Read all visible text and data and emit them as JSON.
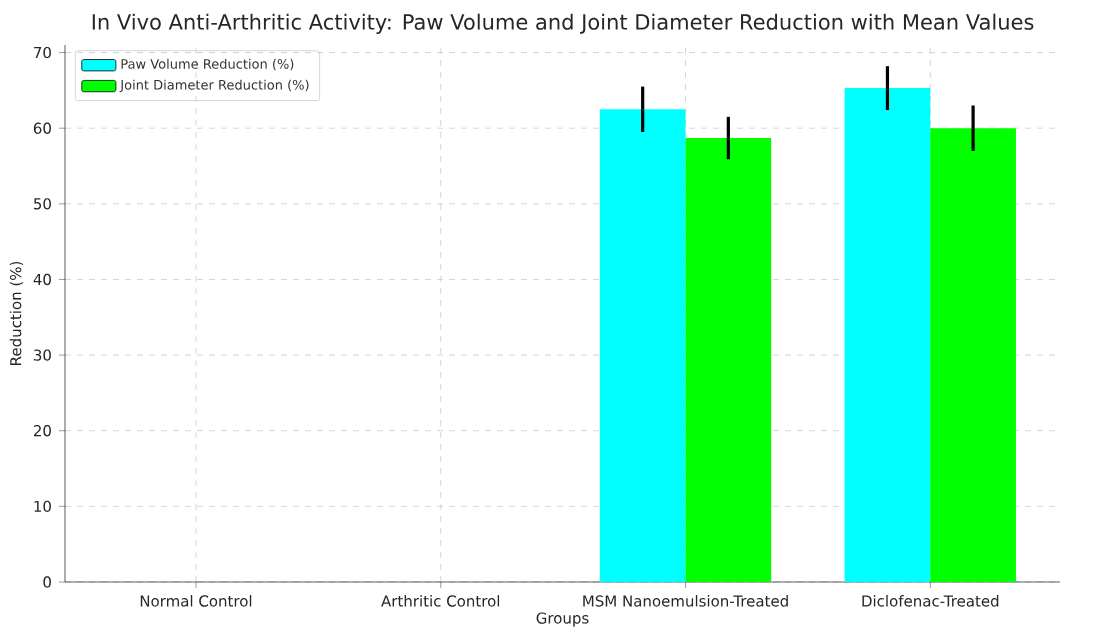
{
  "chart_data": {
    "type": "bar",
    "title": "In Vivo Anti-Arthritic Activity: Paw Volume and Joint Diameter Reduction with Mean Values",
    "xlabel": "Groups",
    "ylabel": "Reduction (%)",
    "categories": [
      "Normal Control",
      "Arthritic Control",
      "MSM Nanoemulsion-Treated",
      "Diclofenac-Treated"
    ],
    "series": [
      {
        "name": "Paw Volume Reduction (%)",
        "color": "#00ffff",
        "values": [
          null,
          null,
          62.5,
          65.3
        ],
        "errors": [
          null,
          null,
          3.0,
          2.9
        ]
      },
      {
        "name": "Joint Diameter Reduction (%)",
        "color": "#00ff00",
        "values": [
          null,
          null,
          58.7,
          60.0
        ],
        "errors": [
          null,
          null,
          2.8,
          3.0
        ]
      }
    ],
    "ylim": [
      0,
      71
    ],
    "yticks": [
      0,
      10,
      20,
      30,
      40,
      50,
      60,
      70
    ],
    "grid": true,
    "legend": "top left"
  }
}
